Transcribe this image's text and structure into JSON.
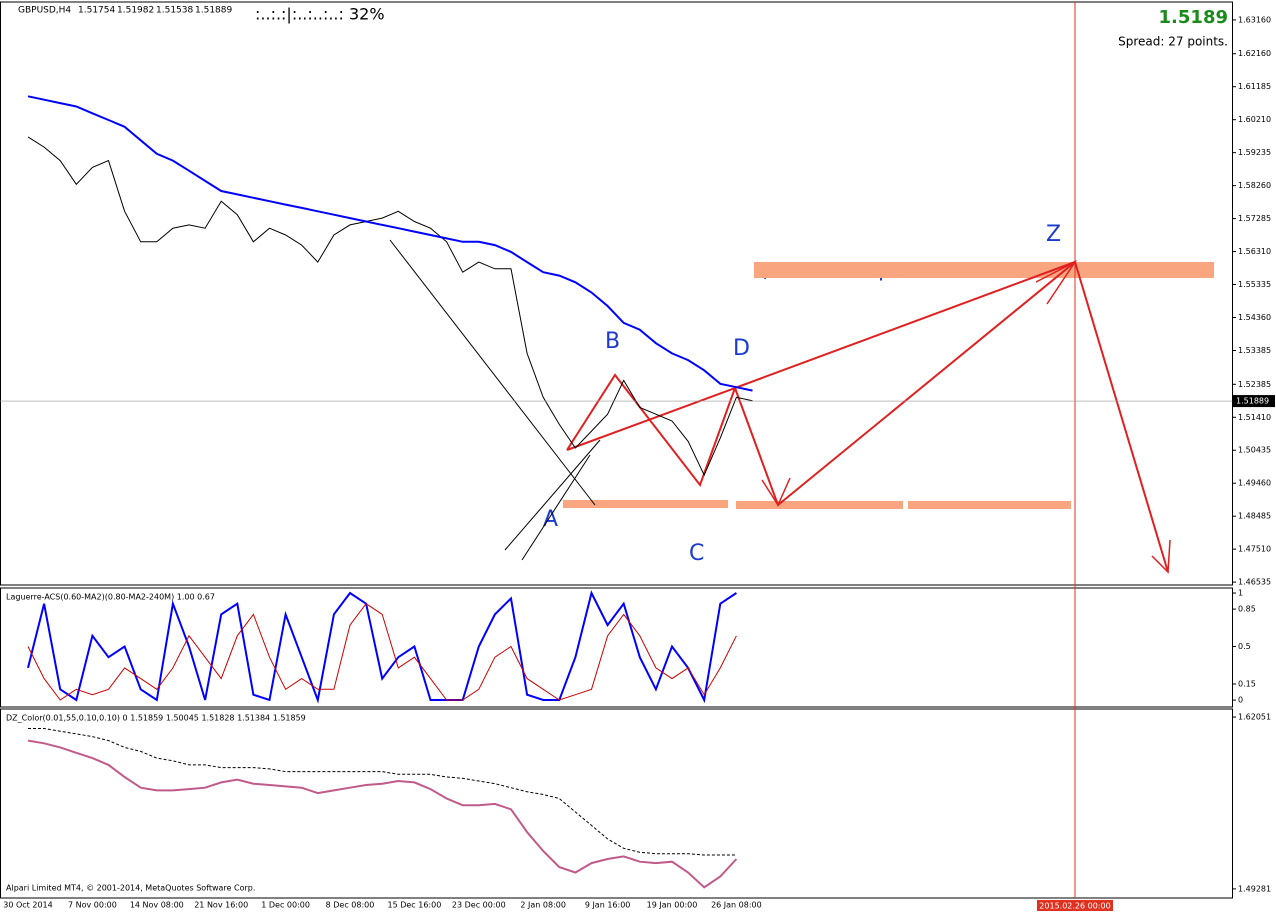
{
  "chart_data": [
    {
      "type": "line",
      "symbol": "GBPUSD,H4",
      "ohlc": [
        1.51754,
        1.51982,
        1.51538,
        1.51889
      ],
      "progress": ":..:.:|:..:..:..: 32%",
      "big_price": 1.5189,
      "spread": "Spread: 27 points.",
      "categories": [
        "30 Oct 2014",
        null,
        null,
        null,
        "7 Nov 00:00",
        null,
        null,
        null,
        "14 Nov 08:00",
        null,
        null,
        null,
        "21 Nov 16:00",
        null,
        null,
        null,
        "1 Dec 00:00",
        null,
        null,
        null,
        "8 Dec 08:00",
        null,
        null,
        null,
        "15 Dec 16:00",
        null,
        null,
        null,
        "23 Dec 00:00",
        null,
        null,
        null,
        "2 Jan 08:00",
        null,
        null,
        null,
        "9 Jan 16:00",
        null,
        null,
        null,
        "19 Jan 00:00",
        null,
        null,
        null,
        "26 Jan 08:00",
        null
      ],
      "series": [
        {
          "color": "#000000",
          "values": [
            1.597,
            1.594,
            1.59,
            1.583,
            1.588,
            1.59,
            1.575,
            1.566,
            1.566,
            1.57,
            1.571,
            1.57,
            1.578,
            1.574,
            1.566,
            1.57,
            1.568,
            1.565,
            1.56,
            1.568,
            1.571,
            1.572,
            1.573,
            1.575,
            1.572,
            1.57,
            1.566,
            1.557,
            1.56,
            1.558,
            1.558,
            1.533,
            1.52,
            1.512,
            1.505,
            1.51,
            1.515,
            1.525,
            1.517,
            1.515,
            1.513,
            1.507,
            1.497,
            1.508,
            1.52,
            1.519
          ]
        },
        {
          "color": "#0000ff",
          "values": [
            1.609,
            1.608,
            1.607,
            1.606,
            1.604,
            1.602,
            1.6,
            1.596,
            1.592,
            1.59,
            1.587,
            1.584,
            1.581,
            1.58,
            1.579,
            1.578,
            1.577,
            1.576,
            1.575,
            1.574,
            1.573,
            1.572,
            1.571,
            1.57,
            1.569,
            1.568,
            1.567,
            1.566,
            1.566,
            1.565,
            1.563,
            1.56,
            1.557,
            1.556,
            1.554,
            1.551,
            1.547,
            1.542,
            1.54,
            1.536,
            1.533,
            1.531,
            1.528,
            1.524,
            1.523,
            1.522
          ]
        }
      ],
      "ylim": [
        1.4645,
        1.6369
      ],
      "yticks": [
        {
          "value": 1.6316,
          "label": "1.63160"
        },
        {
          "value": 1.6216,
          "label": "1.62160"
        },
        1.61185,
        {
          "value": 1.6021,
          "label": "1.60210"
        },
        1.59235,
        {
          "value": 1.5826,
          "label": "1.58260"
        },
        1.57285,
        {
          "value": 1.5631,
          "label": "1.56310"
        },
        1.55335,
        {
          "value": 1.5436,
          "label": "1.54360"
        },
        1.53385,
        1.52385,
        {
          "value": 1.5141,
          "label": "1.51410"
        },
        1.50435,
        {
          "value": 1.4946,
          "label": "1.49460"
        },
        1.48485,
        {
          "value": 1.4751,
          "label": "1.47510"
        },
        1.46535
      ],
      "bid": 1.51889,
      "annotations": [
        "A",
        "B",
        "C",
        "D",
        "Z",
        "цена или время"
      ],
      "future_time": "2015.02.26 00:00"
    },
    {
      "type": "line",
      "title": "Laguerre-ACS(0.60-MA2)(0.80-MA2-240M) 1.00 0.67",
      "series": [
        {
          "color": "#0000ff",
          "values": [
            0.3,
            0.9,
            0.1,
            0.0,
            0.6,
            0.4,
            0.5,
            0.1,
            0.0,
            0.9,
            0.5,
            0.0,
            0.8,
            0.9,
            0.05,
            0.0,
            0.8,
            0.4,
            0.0,
            0.8,
            1.0,
            0.9,
            0.2,
            0.4,
            0.5,
            0.0,
            0.0,
            0.0,
            0.5,
            0.8,
            0.95,
            0.05,
            0.0,
            0.0,
            0.4,
            1.0,
            0.7,
            0.9,
            0.4,
            0.1,
            0.5,
            0.3,
            0.0,
            0.9,
            1.0,
            null
          ]
        },
        {
          "color": "#cc0000",
          "values": [
            0.5,
            0.2,
            0.0,
            0.1,
            0.05,
            0.1,
            0.3,
            0.2,
            0.1,
            0.3,
            0.6,
            0.4,
            0.2,
            0.6,
            0.8,
            0.4,
            0.1,
            0.2,
            0.1,
            0.1,
            0.7,
            0.9,
            0.8,
            0.3,
            0.4,
            0.2,
            0.0,
            0.0,
            0.1,
            0.4,
            0.5,
            0.2,
            0.1,
            0.0,
            0.05,
            0.1,
            0.6,
            0.8,
            0.6,
            0.3,
            0.2,
            0.3,
            0.05,
            0.3,
            0.6,
            null
          ]
        }
      ],
      "ylim": [
        -0.065,
        1.047
      ],
      "yticks": [
        1,
        0.85,
        0.5,
        0.15,
        0
      ]
    },
    {
      "type": "line",
      "title": "DZ_Color(0.01,55,0.10,0.10) 0 1.51859 1.50045 1.51828 1.51384 1.51859",
      "copyright": "Alpari Limited MT4, © 2001-2014, MetaQuotes Software Corp.",
      "series": [
        {
          "color": "#c05a8a",
          "values": [
            1.603,
            1.601,
            1.598,
            1.594,
            1.59,
            1.585,
            1.576,
            1.568,
            1.566,
            1.566,
            1.567,
            1.568,
            1.572,
            1.574,
            1.571,
            1.57,
            1.569,
            1.568,
            1.564,
            1.566,
            1.568,
            1.57,
            1.571,
            1.573,
            1.572,
            1.567,
            1.56,
            1.555,
            1.555,
            1.556,
            1.552,
            1.535,
            1.521,
            1.509,
            1.505,
            1.512,
            1.515,
            1.517,
            1.513,
            1.512,
            1.513,
            1.505,
            1.494,
            1.502,
            1.515,
            null
          ]
        },
        {
          "color": "#000000",
          "values": [
            1.612,
            1.612,
            1.61,
            1.608,
            1.606,
            1.603,
            1.598,
            1.595,
            1.59,
            1.588,
            1.585,
            1.585,
            1.583,
            1.583,
            1.583,
            1.582,
            1.58,
            1.58,
            1.58,
            1.58,
            1.58,
            1.58,
            1.58,
            1.578,
            1.578,
            1.578,
            1.576,
            1.575,
            1.573,
            1.571,
            1.568,
            1.565,
            1.563,
            1.56,
            1.55,
            1.54,
            1.53,
            1.523,
            1.52,
            1.519,
            1.519,
            1.519,
            1.518,
            1.518,
            1.518,
            null
          ]
        }
      ],
      "ylim": [
        1.48605,
        1.62652
      ],
      "yticks": [
        1.62051,
        1.49281
      ]
    }
  ]
}
